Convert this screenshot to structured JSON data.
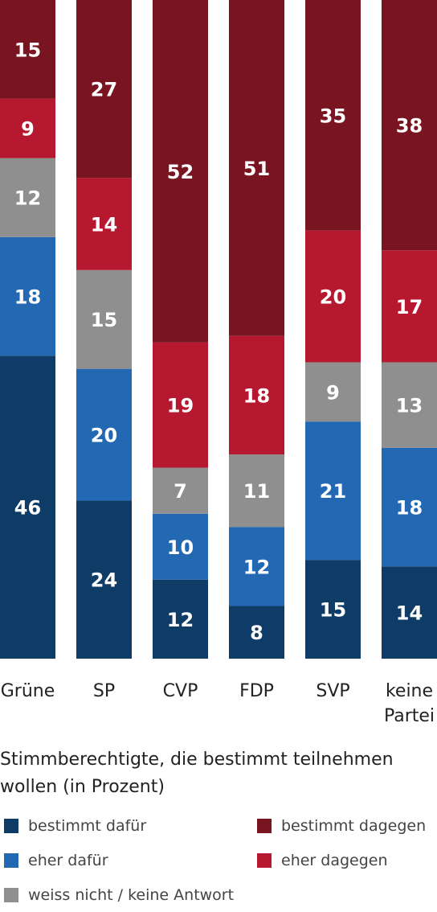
{
  "chart_data": {
    "type": "bar",
    "stacked": true,
    "categories": [
      "Grüne",
      "SP",
      "CVP",
      "FDP",
      "SVP",
      "keine Partei"
    ],
    "series": [
      {
        "name": "bestimmt dafür",
        "color": "#0f3c67",
        "values": [
          46,
          24,
          12,
          8,
          15,
          14
        ]
      },
      {
        "name": "eher dafür",
        "color": "#2368b3",
        "values": [
          18,
          20,
          10,
          12,
          21,
          18
        ]
      },
      {
        "name": "weiss nicht / keine Antwort",
        "color": "#8f8f8f",
        "values": [
          12,
          15,
          7,
          11,
          9,
          13
        ]
      },
      {
        "name": "eher dagegen",
        "color": "#b5182f",
        "values": [
          9,
          14,
          19,
          18,
          20,
          17
        ]
      },
      {
        "name": "bestimmt dagegen",
        "color": "#781520",
        "values": [
          15,
          27,
          52,
          51,
          35,
          38
        ]
      }
    ],
    "ylim": [
      0,
      100
    ],
    "title": "Stimmberechtigte, die bestimmt teilnehmen wollen (in Prozent)",
    "legend_position": "bottom"
  }
}
